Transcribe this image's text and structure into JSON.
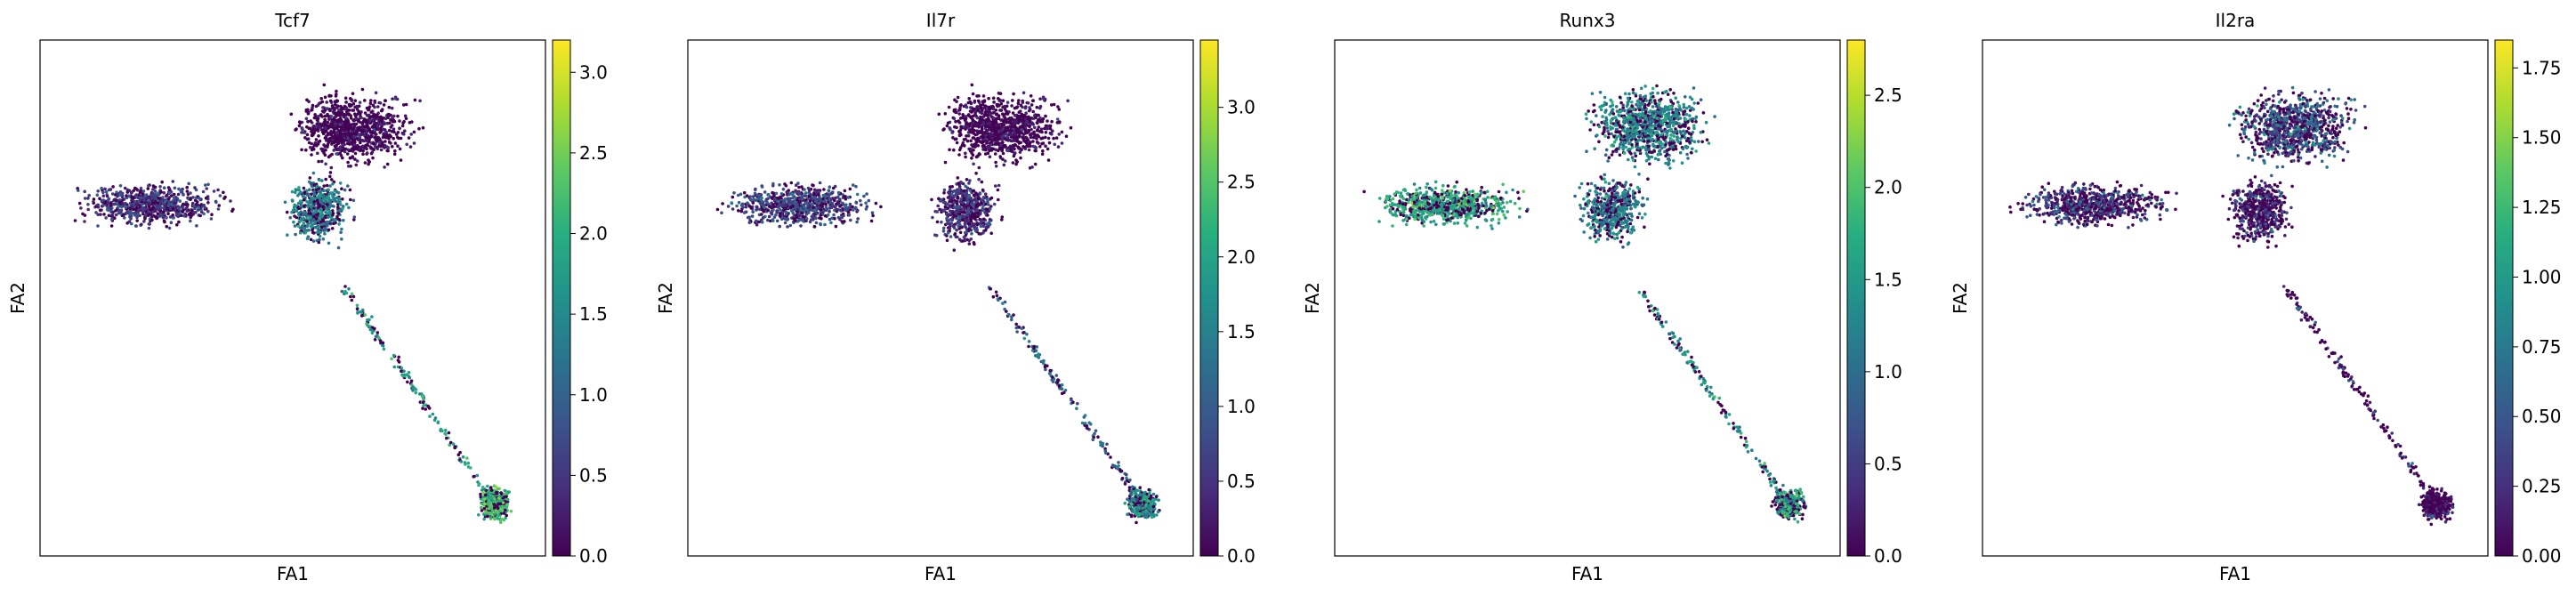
{
  "chart_data": [
    {
      "type": "scatter",
      "title": "Tcf7",
      "xlabel": "FA1",
      "ylabel": "FA2",
      "colorbar": {
        "ticks": [
          "0.0",
          "0.5",
          "1.0",
          "1.5",
          "2.0",
          "2.5",
          "3.0"
        ],
        "tick_values": [
          0,
          0.5,
          1.0,
          1.5,
          2.0,
          2.5,
          3.0
        ],
        "vmin": 0,
        "vmax": 3.2,
        "cmap": "viridis"
      },
      "grid": false,
      "expression_regions": {
        "left_lobe": 0.6,
        "upper_right_lobe": 0.1,
        "center_stem": 1.4,
        "lower_bulb": 2.2
      }
    },
    {
      "type": "scatter",
      "title": "Il7r",
      "xlabel": "FA1",
      "ylabel": "FA2",
      "colorbar": {
        "ticks": [
          "0.0",
          "0.5",
          "1.0",
          "1.5",
          "2.0",
          "2.5",
          "3.0"
        ],
        "tick_values": [
          0,
          0.5,
          1.0,
          1.5,
          2.0,
          2.5,
          3.0
        ],
        "vmin": 0,
        "vmax": 3.45,
        "cmap": "viridis"
      },
      "grid": false,
      "expression_regions": {
        "left_lobe": 0.8,
        "upper_right_lobe": 0.1,
        "center_stem": 0.6,
        "lower_bulb": 1.8
      }
    },
    {
      "type": "scatter",
      "title": "Runx3",
      "xlabel": "FA1",
      "ylabel": "FA2",
      "colorbar": {
        "ticks": [
          "0.0",
          "0.5",
          "1.0",
          "1.5",
          "2.0",
          "2.5"
        ],
        "tick_values": [
          0,
          0.5,
          1.0,
          1.5,
          2.0,
          2.5
        ],
        "vmin": 0,
        "vmax": 2.8,
        "cmap": "viridis"
      },
      "grid": false,
      "expression_regions": {
        "left_lobe": 1.7,
        "upper_right_lobe": 1.3,
        "center_stem": 1.2,
        "lower_bulb": 1.6
      }
    },
    {
      "type": "scatter",
      "title": "Il2ra",
      "xlabel": "FA1",
      "ylabel": "FA2",
      "colorbar": {
        "ticks": [
          "0.00",
          "0.25",
          "0.50",
          "0.75",
          "1.00",
          "1.25",
          "1.50",
          "1.75"
        ],
        "tick_values": [
          0,
          0.25,
          0.5,
          0.75,
          1.0,
          1.25,
          1.5,
          1.75
        ],
        "vmin": 0,
        "vmax": 1.85,
        "cmap": "viridis"
      },
      "grid": false,
      "expression_regions": {
        "left_lobe": 0.3,
        "upper_right_lobe": 0.5,
        "center_stem": 0.2,
        "lower_bulb": 0.05
      }
    }
  ]
}
